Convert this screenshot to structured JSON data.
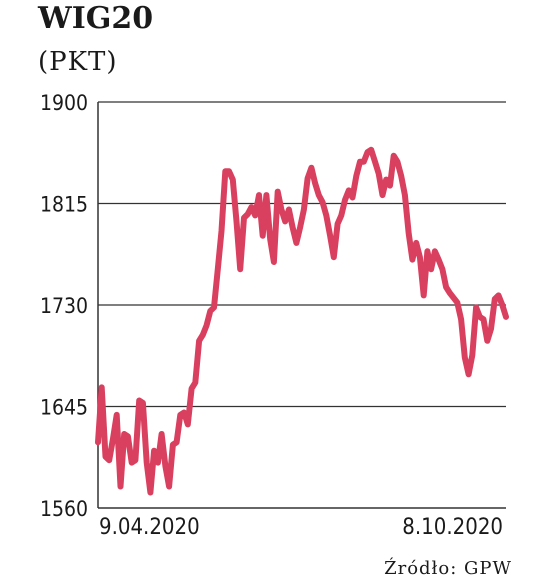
{
  "chart_data": {
    "type": "line",
    "title": "WIG20",
    "subtitle": "(PKT)",
    "xlabel": "",
    "ylabel": "",
    "x_tick_labels": [
      "9.04.2020",
      "8.10.2020"
    ],
    "x_range": [
      "9.04.2020",
      "8.10.2020"
    ],
    "y_ticks": [
      1560,
      1645,
      1730,
      1815,
      1900
    ],
    "ylim": [
      1560,
      1900
    ],
    "grid": true,
    "legend": "none",
    "source": "Źródło: GPW",
    "colors": {
      "line": "#d9405f",
      "grid": "#333333",
      "text": "#1a1a1a"
    },
    "series": [
      {
        "values": [
          1615,
          1661,
          1603,
          1600,
          1618,
          1638,
          1578,
          1622,
          1620,
          1598,
          1600,
          1650,
          1648,
          1598,
          1573,
          1608,
          1598,
          1622,
          1595,
          1578,
          1613,
          1615,
          1638,
          1640,
          1630,
          1660,
          1665,
          1700,
          1705,
          1713,
          1725,
          1728,
          1760,
          1792,
          1842,
          1842,
          1835,
          1800,
          1760,
          1803,
          1806,
          1812,
          1805,
          1822,
          1788,
          1822,
          1785,
          1766,
          1825,
          1810,
          1800,
          1810,
          1795,
          1782,
          1795,
          1810,
          1836,
          1845,
          1832,
          1822,
          1816,
          1805,
          1788,
          1770,
          1798,
          1805,
          1818,
          1826,
          1820,
          1838,
          1850,
          1850,
          1858,
          1860,
          1850,
          1840,
          1822,
          1835,
          1830,
          1855,
          1850,
          1838,
          1822,
          1790,
          1768,
          1782,
          1770,
          1738,
          1775,
          1760,
          1775,
          1768,
          1760,
          1745,
          1740,
          1736,
          1732,
          1718,
          1686,
          1672,
          1688,
          1728,
          1720,
          1718,
          1700,
          1710,
          1735,
          1738,
          1730,
          1720
        ]
      }
    ]
  }
}
